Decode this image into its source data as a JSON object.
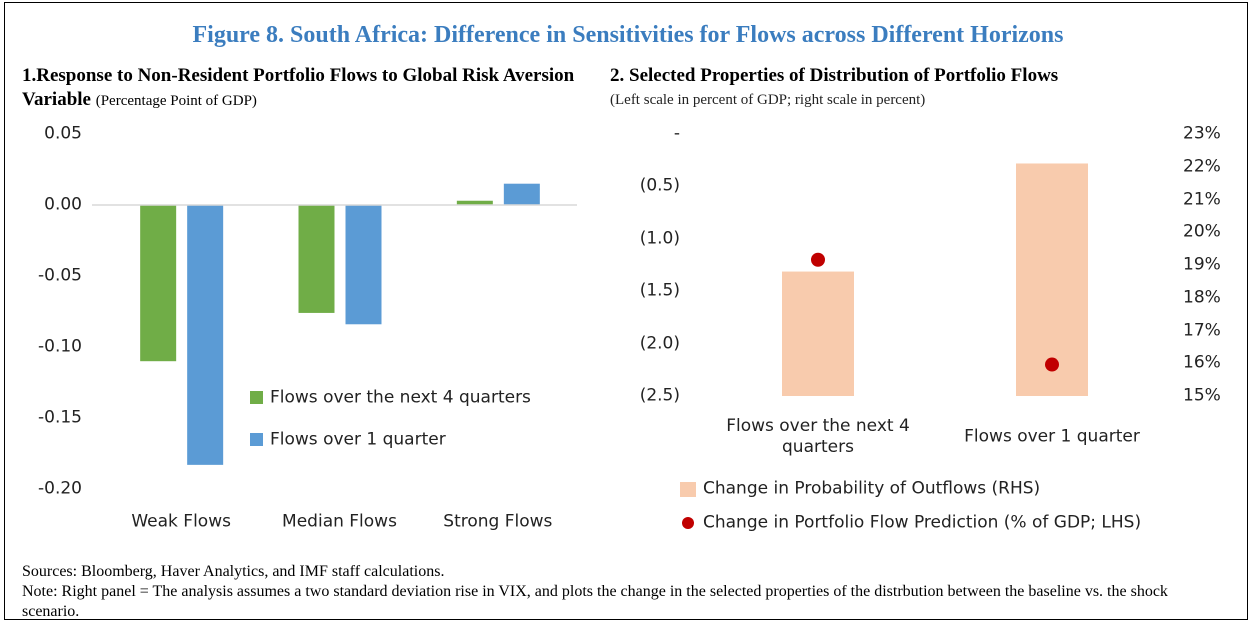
{
  "figure_title": "Figure 8. South Africa: Difference in Sensitivities for Flows across Different Horizons",
  "sources": "Sources: Bloomberg, Haver Analytics, and IMF staff calculations.",
  "note": "Note: Right panel = The analysis assumes a two standard deviation rise in VIX, and plots the change in the selected properties of the distrbution between the baseline vs. the shock scenario.",
  "chart_data": [
    {
      "type": "bar",
      "title": "1.Response to Non-Resident Portfolio Flows to Global Risk Aversion Variable",
      "subtitle": "(Percentage Point of GDP)",
      "categories": [
        "Weak Flows",
        "Median Flows",
        "Strong Flows"
      ],
      "series": [
        {
          "name": "Flows over the next 4 quarters",
          "color": "#70ad47",
          "values": [
            -0.11,
            -0.076,
            0.003
          ]
        },
        {
          "name": "Flows over 1 quarter",
          "color": "#5b9bd5",
          "values": [
            -0.183,
            -0.084,
            0.015
          ]
        }
      ],
      "ylim": [
        -0.2,
        0.05
      ],
      "yticks": [
        0.05,
        {
          "value": 0,
          "label": "0.00"
        },
        -0.05,
        {
          "value": -0.1,
          "label": "-0.10"
        },
        -0.15,
        {
          "value": -0.2,
          "label": "-0.20"
        }
      ],
      "grid": false,
      "legend": "inside"
    },
    {
      "type": "bar",
      "title": "2. Selected Properties of Distribution of Portfolio Flows",
      "subtitle": "(Left scale in percent of GDP; right scale in percent)",
      "categories": [
        "Flows over the next 4 quarters",
        "Flows over 1 quarter"
      ],
      "series": [
        {
          "name": "Change in Probability of Outflows (RHS)",
          "type": "bar",
          "axis": "y2",
          "color": "#f8cbad",
          "values": [
            18.8,
            22.1
          ]
        },
        {
          "name": "Change in Portfolio Flow Prediction (% of GDP; LHS)",
          "type": "scatter",
          "color": "#c00000",
          "values": [
            -1.2,
            -2.2
          ]
        }
      ],
      "ylim": [
        -2.5,
        0
      ],
      "yticks": [
        {
          "value": 0,
          "label": "-"
        },
        {
          "value": -0.5,
          "label": "(0.5)"
        },
        {
          "value": -1,
          "label": "(1.0)"
        },
        {
          "value": -1.5,
          "label": "(1.5)"
        },
        {
          "value": -2,
          "label": "(2.0)"
        },
        {
          "value": -2.5,
          "label": "(2.5)"
        }
      ],
      "y2lim": [
        15,
        23
      ],
      "y2ticks": [
        {
          "value": 15,
          "label": "15%"
        },
        {
          "value": 16,
          "label": "16%"
        },
        {
          "value": 17,
          "label": "17%"
        },
        {
          "value": 18,
          "label": "18%"
        },
        {
          "value": 19,
          "label": "19%"
        },
        {
          "value": 20,
          "label": "20%"
        },
        {
          "value": 21,
          "label": "21%"
        },
        {
          "value": 22,
          "label": "22%"
        },
        {
          "value": 23,
          "label": "23%"
        }
      ],
      "grid": false,
      "legend": "bottom"
    }
  ]
}
